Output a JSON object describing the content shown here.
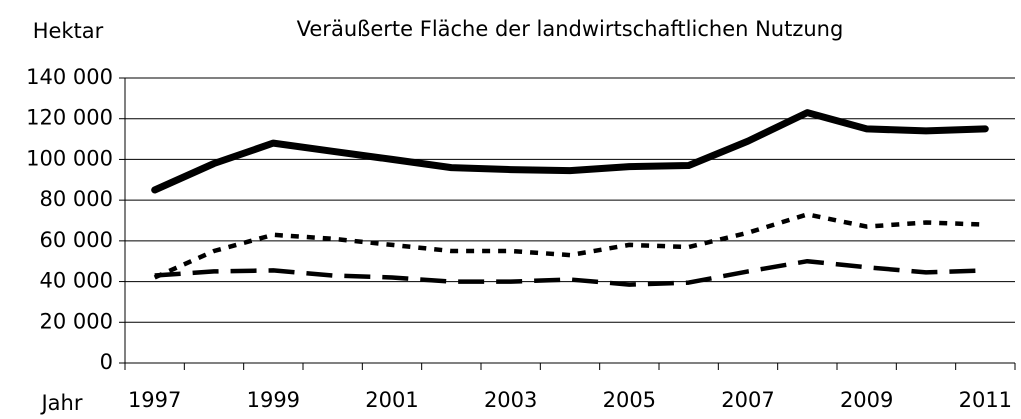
{
  "chart_data": {
    "type": "line",
    "title": "Veräußerte Fläche der landwirtschaftlichen Nutzung",
    "y_label": "Hektar",
    "x_label": "Jahr",
    "categories": [
      "1997",
      null,
      "1999",
      null,
      "2001",
      null,
      "2003",
      null,
      "2005",
      null,
      "2007",
      null,
      "2009",
      null,
      "2011"
    ],
    "series": [
      {
        "color": "#000000",
        "style": "solid",
        "values": [
          85000,
          98000,
          108000,
          104000,
          100000,
          96000,
          95000,
          94500,
          96500,
          97000,
          109000,
          123000,
          115000,
          114000,
          115000
        ]
      },
      {
        "color": "#000000",
        "style": "dotted",
        "values": [
          42000,
          55000,
          63000,
          61000,
          58000,
          55000,
          55000,
          53000,
          58000,
          57000,
          64000,
          73000,
          67000,
          69000,
          68000
        ]
      },
      {
        "color": "#000000",
        "style": "dashed",
        "values": [
          43000,
          45000,
          45500,
          43000,
          42000,
          40000,
          40000,
          41000,
          38500,
          39500,
          45000,
          50000,
          47000,
          44500,
          45500
        ]
      }
    ],
    "ylim": [
      0,
      140000
    ],
    "yticks": [
      0,
      {
        "value": 20000,
        "label": "20 000"
      },
      {
        "value": 40000,
        "label": "40 000"
      },
      {
        "value": 60000,
        "label": "60 000"
      },
      {
        "value": 80000,
        "label": "80 000"
      },
      {
        "value": 100000,
        "label": "100 000"
      },
      {
        "value": 120000,
        "label": "120 000"
      },
      {
        "value": 140000,
        "label": "140 000"
      }
    ],
    "grid": true
  }
}
